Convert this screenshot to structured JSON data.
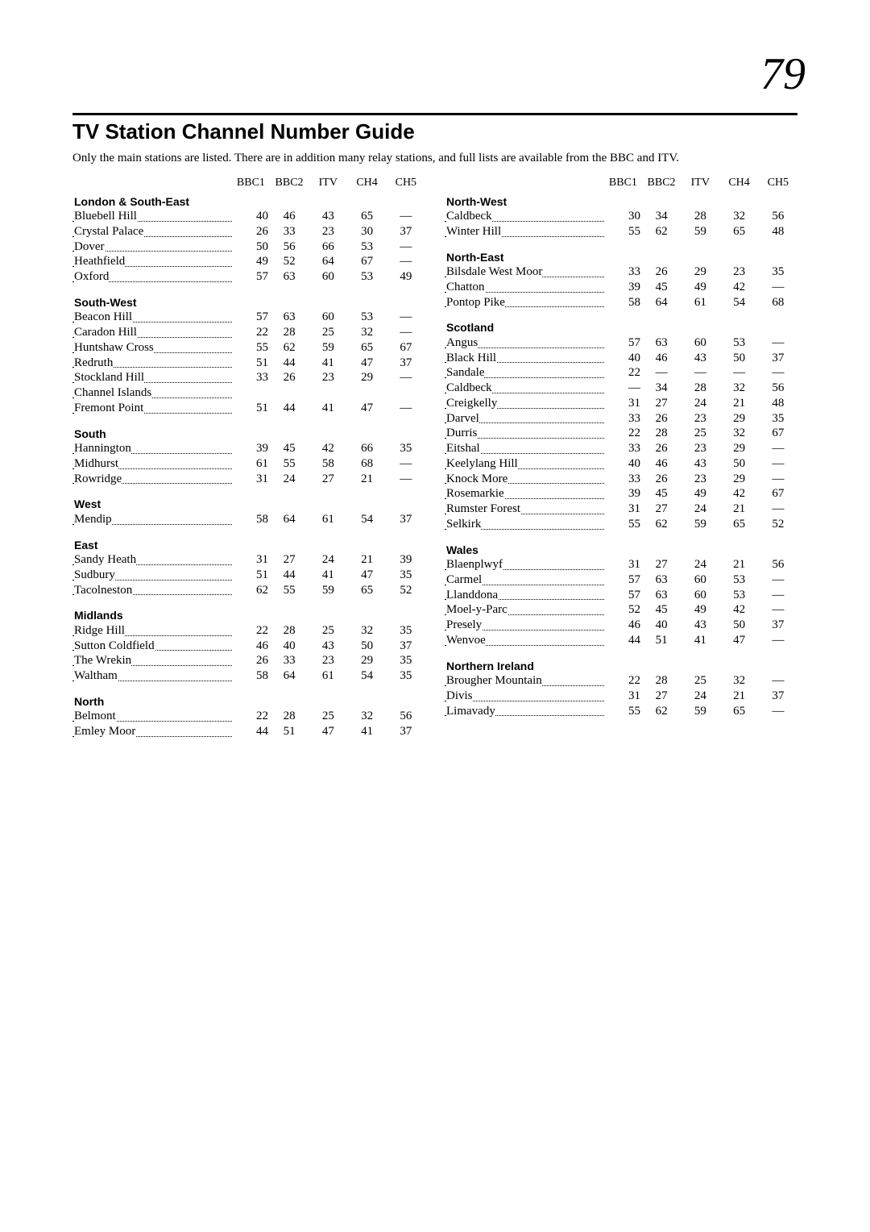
{
  "page_number": "79",
  "title": "TV Station Channel Number Guide",
  "intro": "Only the main stations are listed. There are in addition many relay stations, and full lists are available from the BBC and ITV.",
  "headers": [
    "BBC1",
    "BBC2",
    "ITV",
    "CH4",
    "CH5"
  ],
  "left": [
    {
      "type": "region",
      "name": "London & South-East"
    },
    {
      "type": "row",
      "name": "Bluebell Hill",
      "vals": [
        "40",
        "46",
        "43",
        "65",
        "—"
      ]
    },
    {
      "type": "row",
      "name": "Crystal Palace",
      "vals": [
        "26",
        "33",
        "23",
        "30",
        "37"
      ]
    },
    {
      "type": "row",
      "name": "Dover",
      "vals": [
        "50",
        "56",
        "66",
        "53",
        "—"
      ]
    },
    {
      "type": "row",
      "name": "Heathfield",
      "vals": [
        "49",
        "52",
        "64",
        "67",
        "—"
      ]
    },
    {
      "type": "row",
      "name": "Oxford",
      "vals": [
        "57",
        "63",
        "60",
        "53",
        "49"
      ]
    },
    {
      "type": "spacer"
    },
    {
      "type": "region",
      "name": "South-West"
    },
    {
      "type": "row",
      "name": "Beacon Hill",
      "vals": [
        "57",
        "63",
        "60",
        "53",
        "—"
      ]
    },
    {
      "type": "row",
      "name": "Caradon Hill",
      "vals": [
        "22",
        "28",
        "25",
        "32",
        "—"
      ]
    },
    {
      "type": "row",
      "name": "Huntshaw Cross",
      "vals": [
        "55",
        "62",
        "59",
        "65",
        "67"
      ]
    },
    {
      "type": "row",
      "name": "Redruth",
      "vals": [
        "51",
        "44",
        "41",
        "47",
        "37"
      ]
    },
    {
      "type": "row",
      "name": "Stockland Hill",
      "vals": [
        "33",
        "26",
        "23",
        "29",
        "—"
      ]
    },
    {
      "type": "row",
      "name": "Channel Islands",
      "vals": [
        "",
        "",
        "",
        "",
        ""
      ]
    },
    {
      "type": "row",
      "name": "Fremont Point",
      "vals": [
        "51",
        "44",
        "41",
        "47",
        "—"
      ]
    },
    {
      "type": "spacer"
    },
    {
      "type": "region",
      "name": "South"
    },
    {
      "type": "row",
      "name": "Hannington",
      "vals": [
        "39",
        "45",
        "42",
        "66",
        "35"
      ]
    },
    {
      "type": "row",
      "name": "Midhurst",
      "vals": [
        "61",
        "55",
        "58",
        "68",
        "—"
      ]
    },
    {
      "type": "row",
      "name": "Rowridge",
      "vals": [
        "31",
        "24",
        "27",
        "21",
        "—"
      ]
    },
    {
      "type": "spacer"
    },
    {
      "type": "region",
      "name": "West"
    },
    {
      "type": "row",
      "name": "Mendip",
      "vals": [
        "58",
        "64",
        "61",
        "54",
        "37"
      ]
    },
    {
      "type": "spacer"
    },
    {
      "type": "region",
      "name": "East"
    },
    {
      "type": "row",
      "name": "Sandy Heath",
      "vals": [
        "31",
        "27",
        "24",
        "21",
        "39"
      ]
    },
    {
      "type": "row",
      "name": "Sudbury",
      "vals": [
        "51",
        "44",
        "41",
        "47",
        "35"
      ]
    },
    {
      "type": "row",
      "name": "Tacolneston",
      "vals": [
        "62",
        "55",
        "59",
        "65",
        "52"
      ]
    },
    {
      "type": "spacer"
    },
    {
      "type": "region",
      "name": "Midlands"
    },
    {
      "type": "row",
      "name": "Ridge Hill",
      "vals": [
        "22",
        "28",
        "25",
        "32",
        "35"
      ]
    },
    {
      "type": "row",
      "name": "Sutton Coldfield",
      "vals": [
        "46",
        "40",
        "43",
        "50",
        "37"
      ]
    },
    {
      "type": "row",
      "name": "The Wrekin",
      "vals": [
        "26",
        "33",
        "23",
        "29",
        "35"
      ]
    },
    {
      "type": "row",
      "name": "Waltham",
      "vals": [
        "58",
        "64",
        "61",
        "54",
        "35"
      ]
    },
    {
      "type": "spacer"
    },
    {
      "type": "region",
      "name": "North"
    },
    {
      "type": "row",
      "name": "Belmont",
      "vals": [
        "22",
        "28",
        "25",
        "32",
        "56"
      ]
    },
    {
      "type": "row",
      "name": "Emley Moor",
      "vals": [
        "44",
        "51",
        "47",
        "41",
        "37"
      ]
    }
  ],
  "right": [
    {
      "type": "region",
      "name": "North-West"
    },
    {
      "type": "row",
      "name": "Caldbeck",
      "vals": [
        "30",
        "34",
        "28",
        "32",
        "56"
      ]
    },
    {
      "type": "row",
      "name": "Winter Hill",
      "vals": [
        "55",
        "62",
        "59",
        "65",
        "48"
      ]
    },
    {
      "type": "spacer"
    },
    {
      "type": "region",
      "name": "North-East"
    },
    {
      "type": "row",
      "name": "Bilsdale West Moor",
      "vals": [
        "33",
        "26",
        "29",
        "23",
        "35"
      ]
    },
    {
      "type": "row",
      "name": "Chatton",
      "vals": [
        "39",
        "45",
        "49",
        "42",
        "—"
      ]
    },
    {
      "type": "row",
      "name": "Pontop Pike",
      "vals": [
        "58",
        "64",
        "61",
        "54",
        "68"
      ]
    },
    {
      "type": "spacer"
    },
    {
      "type": "region",
      "name": "Scotland"
    },
    {
      "type": "row",
      "name": "Angus",
      "vals": [
        "57",
        "63",
        "60",
        "53",
        "—"
      ]
    },
    {
      "type": "row",
      "name": "Black Hill",
      "vals": [
        "40",
        "46",
        "43",
        "50",
        "37"
      ]
    },
    {
      "type": "row",
      "name": "Sandale",
      "vals": [
        "22",
        "—",
        "—",
        "—",
        "—"
      ]
    },
    {
      "type": "row",
      "name": "Caldbeck",
      "vals": [
        "—",
        "34",
        "28",
        "32",
        "56"
      ]
    },
    {
      "type": "row",
      "name": "Creigkelly",
      "vals": [
        "31",
        "27",
        "24",
        "21",
        "48"
      ]
    },
    {
      "type": "row",
      "name": "Darvel",
      "vals": [
        "33",
        "26",
        "23",
        "29",
        "35"
      ]
    },
    {
      "type": "row",
      "name": "Durris",
      "vals": [
        "22",
        "28",
        "25",
        "32",
        "67"
      ]
    },
    {
      "type": "row",
      "name": "Eitshal",
      "vals": [
        "33",
        "26",
        "23",
        "29",
        "—"
      ]
    },
    {
      "type": "row",
      "name": "Keelylang Hill",
      "vals": [
        "40",
        "46",
        "43",
        "50",
        "—"
      ]
    },
    {
      "type": "row",
      "name": "Knock More",
      "vals": [
        "33",
        "26",
        "23",
        "29",
        "—"
      ]
    },
    {
      "type": "row",
      "name": "Rosemarkie",
      "vals": [
        "39",
        "45",
        "49",
        "42",
        "67"
      ]
    },
    {
      "type": "row",
      "name": "Rumster Forest",
      "vals": [
        "31",
        "27",
        "24",
        "21",
        "—"
      ]
    },
    {
      "type": "row",
      "name": "Selkirk",
      "vals": [
        "55",
        "62",
        "59",
        "65",
        "52"
      ]
    },
    {
      "type": "spacer"
    },
    {
      "type": "region",
      "name": "Wales"
    },
    {
      "type": "row",
      "name": "Blaenplwyf",
      "vals": [
        "31",
        "27",
        "24",
        "21",
        "56"
      ]
    },
    {
      "type": "row",
      "name": "Carmel",
      "vals": [
        "57",
        "63",
        "60",
        "53",
        "—"
      ]
    },
    {
      "type": "row",
      "name": "Llanddona",
      "vals": [
        "57",
        "63",
        "60",
        "53",
        "—"
      ]
    },
    {
      "type": "row",
      "name": "Moel-y-Parc",
      "vals": [
        "52",
        "45",
        "49",
        "42",
        "—"
      ]
    },
    {
      "type": "row",
      "name": "Presely",
      "vals": [
        "46",
        "40",
        "43",
        "50",
        "37"
      ]
    },
    {
      "type": "row",
      "name": "Wenvoe",
      "vals": [
        "44",
        "51",
        "41",
        "47",
        "—"
      ]
    },
    {
      "type": "spacer"
    },
    {
      "type": "region",
      "name": "Northern Ireland"
    },
    {
      "type": "row",
      "name": "Brougher Mountain",
      "vals": [
        "22",
        "28",
        "25",
        "32",
        "—"
      ]
    },
    {
      "type": "row",
      "name": "Divis",
      "vals": [
        "31",
        "27",
        "24",
        "21",
        "37"
      ]
    },
    {
      "type": "row",
      "name": "Limavady",
      "vals": [
        "55",
        "62",
        "59",
        "65",
        "—"
      ]
    }
  ]
}
